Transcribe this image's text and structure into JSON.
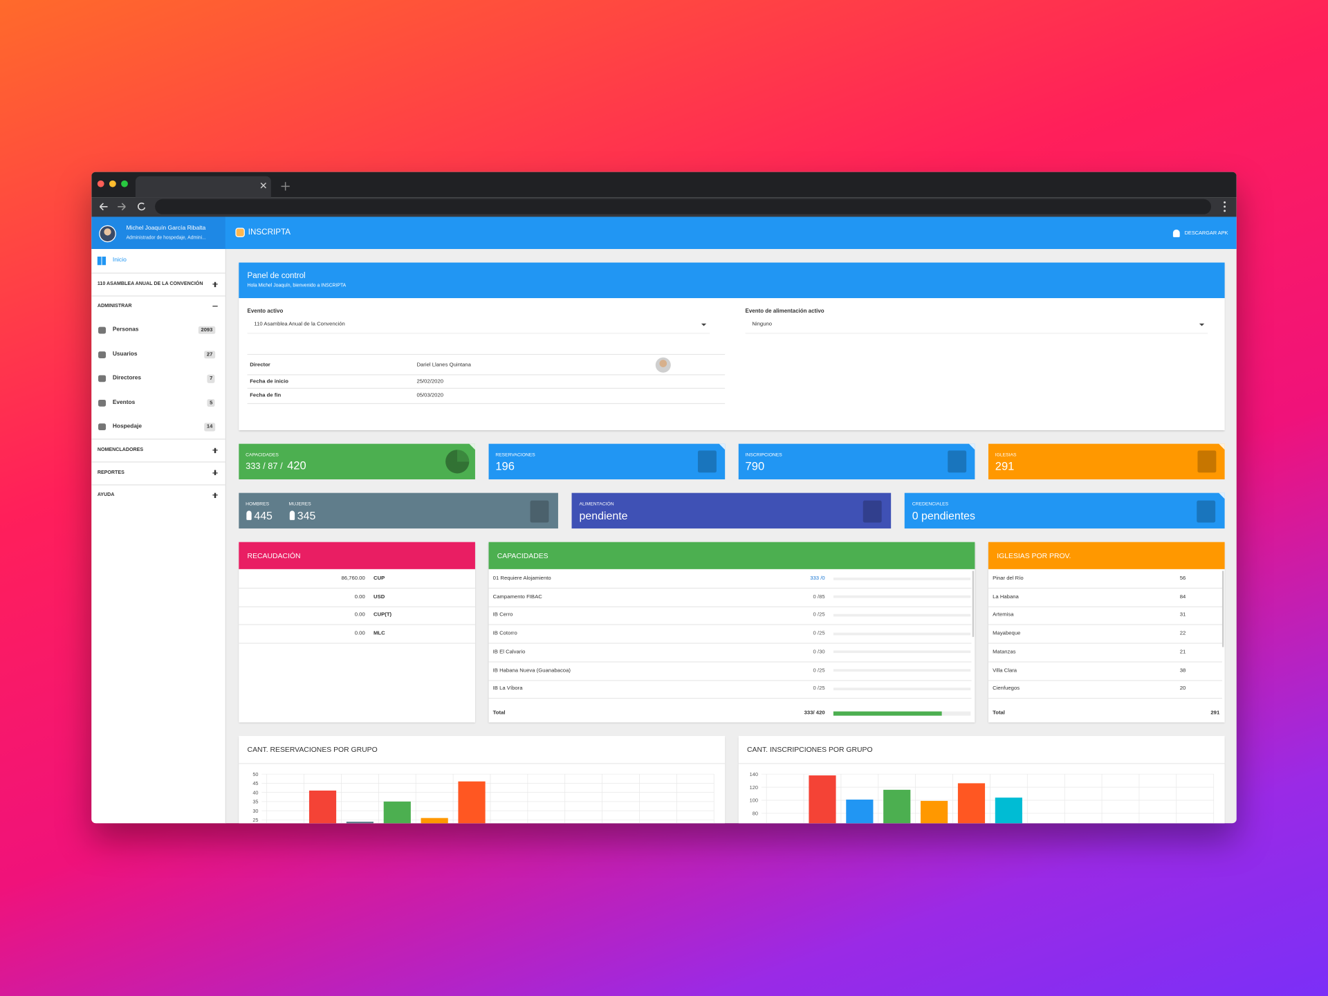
{
  "user": {
    "name": "Michel Joaquín García Ribalta",
    "role": "Administrador de hospedaje, Admini..."
  },
  "app": {
    "title": "INSCRIPTA",
    "download": "DESCARGAR APK"
  },
  "sidebar": {
    "home": "Inicio",
    "event": "110 ASAMBLEA ANUAL DE LA CONVENCIÓN",
    "admin": "ADMINISTRAR",
    "items": [
      {
        "label": "Personas",
        "count": 2093
      },
      {
        "label": "Usuarios",
        "count": 27
      },
      {
        "label": "Directores",
        "count": 7
      },
      {
        "label": "Eventos",
        "count": 5
      },
      {
        "label": "Hospedaje",
        "count": 14
      }
    ],
    "sections": [
      "NOMENCLADORES",
      "REPORTES",
      "AYUDA"
    ]
  },
  "panel": {
    "title": "Panel de control",
    "subtitle": "Hola Michel Joaquín, bienvenido a INSCRIPTA",
    "active_event_label": "Evento activo",
    "active_event": "110 Asamblea Anual de la Convención",
    "food_event_label": "Evento de alimentación activo",
    "food_event": "Ninguno",
    "details": [
      [
        "Director",
        "Dariel Llanes Quintana"
      ],
      [
        "Fecha de inicio",
        "25/02/2020"
      ],
      [
        "Fecha de fin",
        "05/03/2020"
      ]
    ]
  },
  "stats": [
    {
      "label": "CAPACIDADES",
      "value_parts": [
        "333 / 87 /",
        "420"
      ]
    },
    {
      "label": "RESERVACIONES",
      "value": 196
    },
    {
      "label": "INSCRIPCIONES",
      "value": 790
    },
    {
      "label": "IGLESIAS",
      "value": 291
    }
  ],
  "stats2": {
    "gender": [
      {
        "label": "HOMBRES",
        "value": 445
      },
      {
        "label": "MUJERES",
        "value": 345
      }
    ],
    "food": {
      "label": "ALIMENTACIÓN",
      "value": "pendiente"
    },
    "credentials": {
      "label": "CREDENCIALES",
      "value": "0 pendientes"
    }
  },
  "recaudacion": {
    "title": "RECAUDACIÓN",
    "rows": [
      [
        "86,760.00",
        "CUP"
      ],
      [
        "0.00",
        "USD"
      ],
      [
        "0.00",
        "CUP(T)"
      ],
      [
        "0.00",
        "MLC"
      ]
    ]
  },
  "capacidades": {
    "title": "CAPACIDADES",
    "rows": [
      [
        "01 Requiere Alojamiento",
        "333 /0"
      ],
      [
        "Campamento FIBAC",
        "0 /85"
      ],
      [
        "IB Cerro",
        "0 /25"
      ],
      [
        "IB Cotorro",
        "0 /25"
      ],
      [
        "IB El Calvario",
        "0 /30"
      ],
      [
        "IB Habana Nueva (Guanabacoa)",
        "0 /25"
      ],
      [
        "IB La Víbora",
        "0 /25"
      ]
    ],
    "total": {
      "label": "Total",
      "value_label": "333/ 420",
      "used": 333,
      "capacity": 420
    }
  },
  "iglesias": {
    "title": "IGLESIAS POR PROV.",
    "rows": [
      [
        "Pinar del Río",
        56
      ],
      [
        "La Habana",
        84
      ],
      [
        "Artemisa",
        31
      ],
      [
        "Mayabeque",
        22
      ],
      [
        "Matanzas",
        21
      ],
      [
        "Villa Clara",
        38
      ],
      [
        "Cienfuegos",
        20
      ]
    ],
    "total_label": "Total",
    "total": 291
  },
  "charts": [
    {
      "type": "bar",
      "title": "CANT. RESERVACIONES POR GRUPO",
      "ylim": [
        0,
        50
      ],
      "yticks": [
        25,
        30,
        35,
        40,
        45,
        50
      ],
      "grid": true,
      "values": [
        null,
        41,
        24,
        35,
        26,
        46,
        null,
        null,
        null,
        null,
        null,
        null
      ],
      "colors": [
        null,
        "#f44336",
        "#607d8b",
        "#4caf50",
        "#ff9800",
        "#ff5722",
        null,
        null,
        null,
        null,
        null,
        null
      ]
    },
    {
      "type": "bar",
      "title": "CANT. INSCRIPCIONES POR GRUPO",
      "ylim": [
        0,
        140
      ],
      "yticks": [
        80,
        100,
        120,
        140
      ],
      "grid": true,
      "values": [
        null,
        138,
        101,
        116,
        99,
        126,
        104,
        null,
        null,
        null,
        null,
        null
      ],
      "colors": [
        null,
        "#f44336",
        "#2196f3",
        "#4caf50",
        "#ff9800",
        "#ff5722",
        "#00bcd4",
        null,
        null,
        null,
        null,
        null
      ]
    }
  ]
}
